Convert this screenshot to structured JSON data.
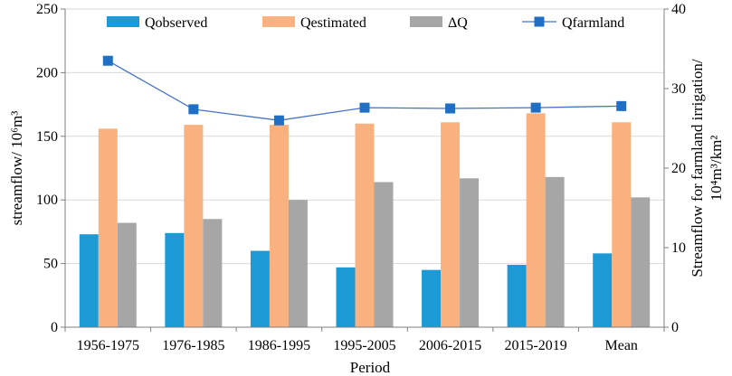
{
  "chart_data": {
    "type": "bar",
    "title": "",
    "xlabel": "Period",
    "ylabel": "streamflow/ 10⁶m³",
    "y2label_line1": "Streamflow for farmland irrigation/",
    "y2label_line2": "10⁴m³/km²",
    "categories": [
      "1956-1975",
      "1976-1985",
      "1986-1995",
      "1995-2005",
      "2006-2015",
      "2015-2019",
      "Mean"
    ],
    "ylim": [
      0,
      250
    ],
    "yticks": [
      0,
      50,
      100,
      150,
      200,
      250
    ],
    "y2lim": [
      0,
      40
    ],
    "y2ticks": [
      0,
      10,
      20,
      30,
      40
    ],
    "legend_position": "top",
    "series": [
      {
        "name": "Qobserved",
        "type": "bar",
        "axis": "left",
        "color": "#1C9AD6",
        "values": [
          73,
          74,
          60,
          47,
          45,
          49,
          58
        ]
      },
      {
        "name": "Qestimated",
        "type": "bar",
        "axis": "left",
        "color": "#F8B17F",
        "values": [
          156,
          159,
          159,
          160,
          161,
          168,
          161
        ]
      },
      {
        "name": "ΔQ",
        "type": "bar",
        "axis": "left",
        "color": "#A6A6A6",
        "values": [
          82,
          85,
          100,
          114,
          117,
          118,
          102
        ]
      },
      {
        "name": "Qfarmland",
        "type": "line",
        "axis": "right",
        "color": "#4472C4",
        "marker": "square",
        "marker_color": "#1F6FC5",
        "values": [
          33.5,
          27.4,
          26.0,
          27.6,
          27.5,
          27.6,
          27.8
        ]
      }
    ]
  }
}
